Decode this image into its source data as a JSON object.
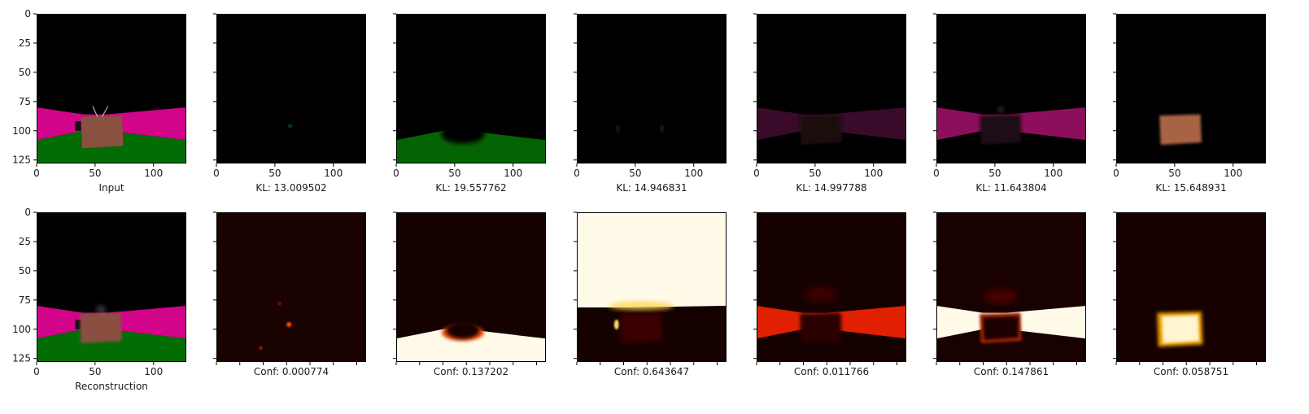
{
  "chart_data": {
    "type": "image-grid",
    "rows": 2,
    "cols": 7,
    "image_size": [
      128,
      128
    ],
    "xlim": [
      0,
      128
    ],
    "ylim": [
      128,
      0
    ],
    "x_ticks": [
      0,
      50,
      100
    ],
    "y_ticks": [
      0,
      25,
      50,
      75,
      100,
      125
    ],
    "top_row": {
      "panels": [
        {
          "caption": "Input",
          "kind": "input"
        },
        {
          "caption": "KL: 13.009502",
          "kind": "mask-faint"
        },
        {
          "caption": "KL: 19.557762",
          "kind": "mask-floor"
        },
        {
          "caption": "KL: 14.946831",
          "kind": "mask-empty"
        },
        {
          "caption": "KL: 14.997788",
          "kind": "mask-wall-dim"
        },
        {
          "caption": "KL: 11.643804",
          "kind": "mask-wall"
        },
        {
          "caption": "KL: 15.648931",
          "kind": "mask-object"
        }
      ]
    },
    "bottom_row": {
      "panels": [
        {
          "caption": "Reconstruction",
          "kind": "recon"
        },
        {
          "caption": "Conf: 0.000774",
          "kind": "conf-faint"
        },
        {
          "caption": "Conf: 0.137202",
          "kind": "conf-floor"
        },
        {
          "caption": "Conf: 0.643647",
          "kind": "conf-sky"
        },
        {
          "caption": "Conf: 0.011766",
          "kind": "conf-wall-red"
        },
        {
          "caption": "Conf: 0.147861",
          "kind": "conf-wall"
        },
        {
          "caption": "Conf: 0.058751",
          "kind": "conf-object"
        }
      ]
    },
    "colors": {
      "wall_pink": "#d1048a",
      "floor_green": "#046c04",
      "object_brown": "#8a5040",
      "heat_white": "#fffbe8",
      "heat_red": "#e02000",
      "background": "#000000"
    }
  }
}
